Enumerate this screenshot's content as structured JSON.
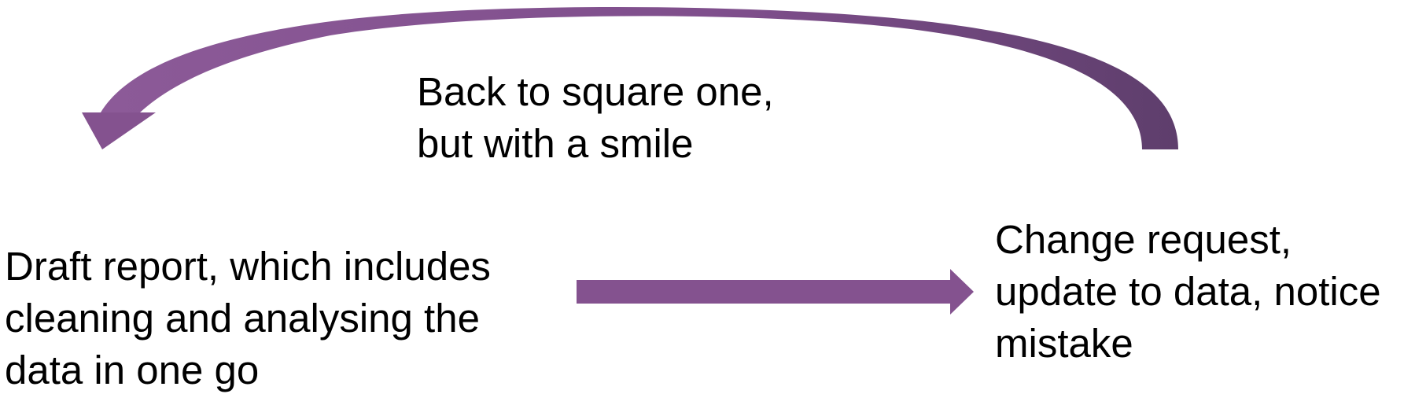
{
  "diagram": {
    "colors": {
      "arrow_fill": "#84528F",
      "arrow_dark": "#5E3E6C",
      "arrow_light": "#9A6BA6",
      "text": "#000000",
      "background": "#FFFFFF"
    },
    "nodes": {
      "draft": {
        "lines": [
          "Draft report, which includes",
          "cleaning and analysing the",
          "data in one go"
        ]
      },
      "change": {
        "lines": [
          "Change request,",
          "update to data, notice",
          "mistake"
        ]
      }
    },
    "loop_label": {
      "lines": [
        "Back to square one,",
        "but with a smile"
      ]
    },
    "edges": [
      {
        "from": "draft",
        "to": "change",
        "kind": "straight-arrow"
      },
      {
        "from": "change",
        "to": "draft",
        "kind": "curved-return-arrow"
      }
    ]
  }
}
